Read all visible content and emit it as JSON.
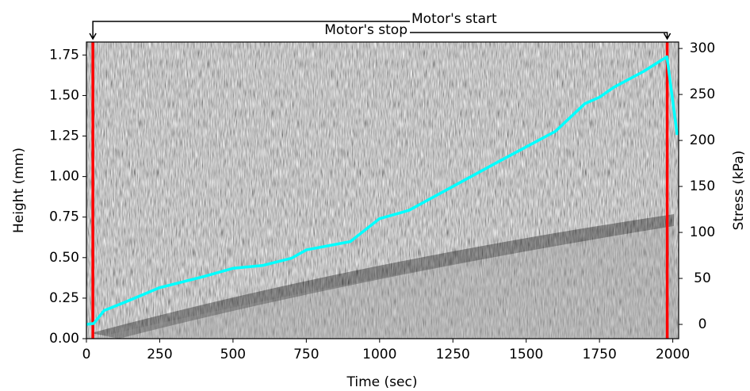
{
  "chart_data": {
    "type": "line",
    "xlabel": "Time (sec)",
    "ylabel": "Height (mm)",
    "y2label": "Stress (kPa)",
    "xlim": [
      0,
      2020
    ],
    "xticks": [
      0,
      250,
      500,
      750,
      1000,
      1250,
      1500,
      1750,
      2000
    ],
    "ylim": [
      0,
      1.83
    ],
    "yticks": [
      {
        "value": 0,
        "label": "0.00"
      },
      {
        "value": 0.25,
        "label": "0.25"
      },
      {
        "value": 0.5,
        "label": "0.50"
      },
      {
        "value": 0.75,
        "label": "0.75"
      },
      {
        "value": 1,
        "label": "1.00"
      },
      {
        "value": 1.25,
        "label": "1.25"
      },
      {
        "value": 1.5,
        "label": "1.50"
      },
      {
        "value": 1.75,
        "label": "1.75"
      }
    ],
    "y2lim": [
      -15.5,
      307
    ],
    "y2ticks": [
      0,
      50,
      100,
      150,
      200,
      250,
      300
    ],
    "x": [
      0,
      25,
      60,
      138,
      250,
      400,
      500,
      600,
      700,
      750,
      900,
      1000,
      1100,
      1250,
      1400,
      1500,
      1600,
      1700,
      1750,
      1800,
      1900,
      1980,
      2015
    ],
    "series": [
      {
        "name": "Stress",
        "color": "#00ffff",
        "axis": "y2",
        "values": [
          0,
          1,
          15,
          25,
          40,
          52,
          61,
          64,
          72,
          81,
          90,
          115,
          124,
          150,
          176,
          193,
          210,
          240,
          247,
          258,
          275,
          291,
          206
        ]
      }
    ],
    "vlines": {
      "color": "#ff0000",
      "values": [
        22,
        1981
      ]
    },
    "annotations": [
      {
        "text": "Motor's start",
        "x": 22
      },
      {
        "text": "Motor's stop",
        "x": 1981
      }
    ]
  }
}
